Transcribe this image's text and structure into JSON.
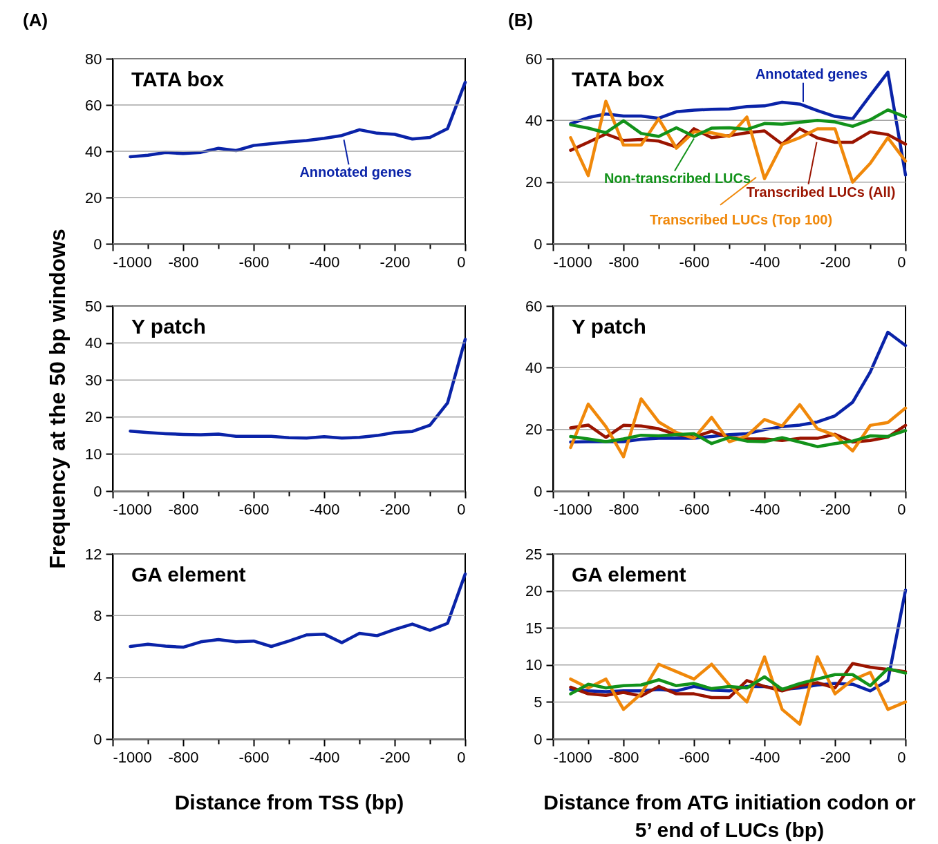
{
  "chart_data": [
    {
      "type": "line",
      "title": "TATA box",
      "annotations": [
        "(A)"
      ],
      "grid": "y",
      "x": [
        -950,
        -900,
        -850,
        -800,
        -750,
        -700,
        -650,
        -600,
        -550,
        -500,
        -450,
        -400,
        -350,
        -300,
        -250,
        -200,
        -150,
        -100,
        -50,
        0
      ],
      "xlim": [
        -1000,
        0
      ],
      "xticks": [
        -1000,
        {
          "value": -900,
          "label": null
        },
        -800,
        {
          "value": -700,
          "label": null
        },
        -600,
        {
          "value": -500,
          "label": null
        },
        -400,
        {
          "value": -300,
          "label": null
        },
        -200,
        {
          "value": -100,
          "label": null
        },
        0
      ],
      "ylim": [
        0,
        80
      ],
      "yticks": [
        0,
        20,
        40,
        60,
        80
      ],
      "series": [
        {
          "name": "Annotated genes",
          "color": "#0a23a8",
          "values": [
            37.6,
            38.3,
            39.5,
            39,
            39.5,
            41.3,
            40.3,
            42.5,
            43.3,
            44,
            44.6,
            45.6,
            46.8,
            49.3,
            47.8,
            47.3,
            45.3,
            46,
            49.8,
            69.8
          ]
        }
      ]
    },
    {
      "type": "line",
      "title": "TATA box",
      "annotations": [
        "(B)"
      ],
      "legend": "bottom right",
      "grid": "y",
      "x": [
        -950,
        -900,
        -850,
        -800,
        -750,
        -700,
        -650,
        -600,
        -550,
        -500,
        -450,
        -400,
        -350,
        -300,
        -250,
        -200,
        -150,
        -100,
        -50,
        0
      ],
      "xlim": [
        -1000,
        0
      ],
      "xticks": [
        -1000,
        {
          "value": -900,
          "label": null
        },
        -800,
        {
          "value": -700,
          "label": null
        },
        -600,
        {
          "value": -500,
          "label": null
        },
        -400,
        {
          "value": -300,
          "label": null
        },
        -200,
        {
          "value": -100,
          "label": null
        },
        0
      ],
      "ylim": [
        0,
        60
      ],
      "yticks": [
        0,
        20,
        40,
        60
      ],
      "series": [
        {
          "name": "Annotated genes",
          "color": "#0a23a8",
          "values": [
            38.9,
            40.9,
            42.1,
            41.4,
            41.4,
            40.7,
            42.8,
            43.3,
            43.6,
            43.7,
            44.5,
            44.7,
            45.9,
            45.3,
            43.2,
            41.3,
            40.5,
            48.1,
            55.6,
            22.3
          ]
        },
        {
          "name": "Transcribed LUCs (All)",
          "color": "#9a1400",
          "values": [
            30.3,
            32.9,
            35.6,
            33.5,
            33.8,
            33.3,
            31.4,
            37.3,
            34.4,
            35.1,
            36,
            36.6,
            32.3,
            37.3,
            34.3,
            32.9,
            32.9,
            36.3,
            35.4,
            32.3
          ]
        },
        {
          "name": "Transcribed LUCs (Top 100)",
          "color": "#f0880a",
          "values": [
            34.4,
            22.1,
            46.2,
            32,
            32,
            40.5,
            31,
            36.3,
            36,
            34.8,
            41.1,
            21.1,
            32.2,
            34.4,
            37.3,
            37.3,
            20,
            26.1,
            34.4,
            26.8
          ]
        },
        {
          "name": "Non-transcribed LUCs",
          "color": "#12921a",
          "values": [
            38.6,
            37.5,
            36,
            39.9,
            35.8,
            34.8,
            37.6,
            34.8,
            37.5,
            37.6,
            37.1,
            39,
            38.8,
            39.4,
            40,
            39.5,
            38.1,
            40.2,
            43.4,
            41.1
          ]
        }
      ]
    },
    {
      "type": "line",
      "title": "Y patch",
      "ylabel": "Frequency at the 50 bp windows",
      "grid": "y",
      "x": [
        -950,
        -900,
        -850,
        -800,
        -750,
        -700,
        -650,
        -600,
        -550,
        -500,
        -450,
        -400,
        -350,
        -300,
        -250,
        -200,
        -150,
        -100,
        -50,
        0
      ],
      "xlim": [
        -1000,
        0
      ],
      "xticks": [
        -1000,
        {
          "value": -900,
          "label": null
        },
        -800,
        {
          "value": -700,
          "label": null
        },
        -600,
        {
          "value": -500,
          "label": null
        },
        -400,
        {
          "value": -300,
          "label": null
        },
        -200,
        {
          "value": -100,
          "label": null
        },
        0
      ],
      "ylim": [
        0,
        50
      ],
      "yticks": [
        0,
        10,
        20,
        30,
        40,
        50
      ],
      "series": [
        {
          "color": "#0a23a8",
          "values": [
            16.2,
            15.8,
            15.5,
            15.3,
            15.2,
            15.4,
            14.8,
            14.8,
            14.8,
            14.4,
            14.3,
            14.7,
            14.3,
            14.5,
            15,
            15.8,
            16.1,
            17.8,
            23.8,
            41
          ]
        }
      ]
    },
    {
      "type": "line",
      "title": "Y patch",
      "grid": "y",
      "x": [
        -950,
        -900,
        -850,
        -800,
        -750,
        -700,
        -650,
        -600,
        -550,
        -500,
        -450,
        -400,
        -350,
        -300,
        -250,
        -200,
        -150,
        -100,
        -50,
        0
      ],
      "xlim": [
        -1000,
        0
      ],
      "xticks": [
        -1000,
        {
          "value": -900,
          "label": null
        },
        -800,
        {
          "value": -700,
          "label": null
        },
        -600,
        {
          "value": -500,
          "label": null
        },
        -400,
        {
          "value": -300,
          "label": null
        },
        -200,
        {
          "value": -100,
          "label": null
        },
        0
      ],
      "ylim": [
        0,
        60
      ],
      "yticks": [
        0,
        20,
        40,
        60
      ],
      "series": [
        {
          "color": "#0a23a8",
          "values": [
            15.9,
            16,
            16,
            16,
            16.8,
            17.1,
            17.1,
            17.1,
            17.7,
            18.3,
            18.6,
            19.9,
            20.9,
            21.4,
            22.4,
            24.4,
            28.8,
            38.6,
            51.5,
            47.2
          ]
        },
        {
          "color": "#9a1400",
          "values": [
            20.5,
            21.4,
            17.4,
            21.3,
            21.1,
            20.2,
            18.3,
            17.5,
            19.4,
            17.4,
            16.9,
            16.9,
            16.4,
            17.1,
            17.1,
            18.4,
            15.9,
            16.4,
            17.5,
            21.3
          ]
        },
        {
          "color": "#f0880a",
          "values": [
            14.1,
            28.2,
            20.9,
            11.1,
            29.9,
            22.4,
            19,
            17.1,
            23.9,
            16,
            17.9,
            23.2,
            21.1,
            28,
            20.2,
            18.1,
            13,
            21.3,
            22.2,
            26.9
          ]
        },
        {
          "color": "#12921a",
          "values": [
            17.7,
            16.9,
            16,
            16.9,
            18.1,
            17.9,
            18.3,
            18.6,
            15.4,
            17.4,
            16.2,
            16,
            17.3,
            15.9,
            14.4,
            15.4,
            16.2,
            17.9,
            17.7,
            19.6
          ]
        }
      ]
    },
    {
      "type": "line",
      "title": "GA element",
      "xlabel": "Distance from TSS (bp)",
      "grid": "y",
      "x": [
        -950,
        -900,
        -850,
        -800,
        -750,
        -700,
        -650,
        -600,
        -550,
        -500,
        -450,
        -400,
        -350,
        -300,
        -250,
        -200,
        -150,
        -100,
        -50,
        0
      ],
      "xlim": [
        -1000,
        0
      ],
      "xticks": [
        -1000,
        {
          "value": -900,
          "label": null
        },
        -800,
        {
          "value": -700,
          "label": null
        },
        -600,
        {
          "value": -500,
          "label": null
        },
        -400,
        {
          "value": -300,
          "label": null
        },
        -200,
        {
          "value": -100,
          "label": null
        },
        0
      ],
      "ylim": [
        0,
        12
      ],
      "yticks": [
        0,
        4,
        8,
        12
      ],
      "series": [
        {
          "color": "#0a23a8",
          "values": [
            6,
            6.15,
            6.02,
            5.95,
            6.3,
            6.45,
            6.3,
            6.35,
            6,
            6.35,
            6.75,
            6.8,
            6.25,
            6.85,
            6.7,
            7.1,
            7.45,
            7.05,
            7.5,
            10.7
          ]
        }
      ]
    },
    {
      "type": "line",
      "title": "GA element",
      "xlabel": "Distance from ATG initiation codon or 5’ end of LUCs (bp)",
      "grid": "y",
      "x": [
        -950,
        -900,
        -850,
        -800,
        -750,
        -700,
        -650,
        -600,
        -550,
        -500,
        -450,
        -400,
        -350,
        -300,
        -250,
        -200,
        -150,
        -100,
        -50,
        0
      ],
      "xlim": [
        -1000,
        0
      ],
      "xticks": [
        -1000,
        {
          "value": -900,
          "label": null
        },
        -800,
        {
          "value": -700,
          "label": null
        },
        -600,
        {
          "value": -500,
          "label": null
        },
        -400,
        {
          "value": -300,
          "label": null
        },
        -200,
        {
          "value": -100,
          "label": null
        },
        0
      ],
      "ylim": [
        0,
        25
      ],
      "yticks": [
        0,
        5,
        10,
        15,
        20,
        25
      ],
      "series": [
        {
          "color": "#0a23a8",
          "values": [
            6.7,
            6.5,
            6.4,
            6.5,
            6.5,
            6.7,
            6.5,
            7.1,
            6.6,
            6.5,
            7.1,
            7.1,
            6.7,
            6.9,
            7.3,
            7.5,
            7.4,
            6.5,
            7.9,
            20.1
          ]
        },
        {
          "color": "#9a1400",
          "values": [
            7,
            6.1,
            5.9,
            6.3,
            5.8,
            7.1,
            6.1,
            6.1,
            5.6,
            5.6,
            7.9,
            7.1,
            6.5,
            7.2,
            7.6,
            6.9,
            10.2,
            9.7,
            9.4,
            9.1
          ]
        },
        {
          "color": "#f0880a",
          "values": [
            8.1,
            6.9,
            8.1,
            4,
            6.1,
            10.1,
            9.1,
            8.1,
            10.1,
            7.3,
            5,
            11.1,
            4,
            2,
            11.1,
            6.1,
            8,
            9,
            4,
            5
          ]
        },
        {
          "color": "#12921a",
          "values": [
            6.1,
            7.4,
            6.9,
            7.2,
            7.3,
            8,
            7.2,
            7.5,
            6.8,
            7.1,
            6.9,
            8.4,
            6.7,
            7.5,
            8.1,
            8.7,
            8.7,
            7.2,
            9.5,
            8.9
          ]
        }
      ]
    }
  ]
}
